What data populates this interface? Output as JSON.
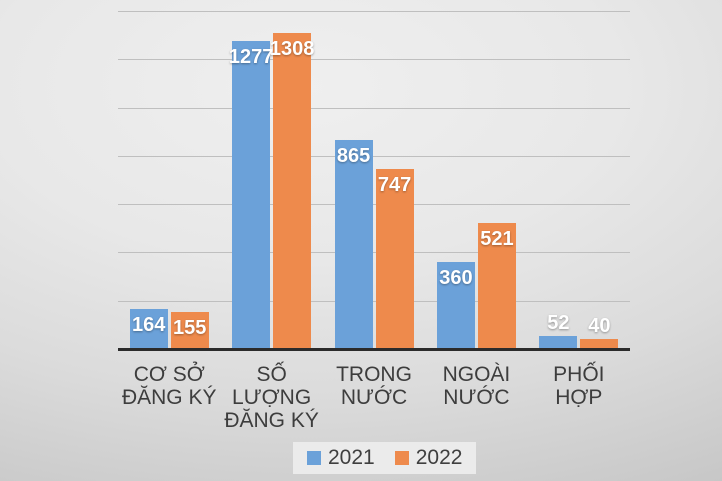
{
  "chart_data": {
    "type": "bar",
    "title": "",
    "xlabel": "",
    "ylabel": "",
    "categories": [
      "CƠ SỞ ĐĂNG KÝ",
      "SỐ LƯỢNG ĐĂNG KÝ",
      "TRONG NƯỚC",
      "NGOÀI NƯỚC",
      "PHỐI HỢP"
    ],
    "category_wrap": [
      [
        "CƠ SỞ",
        "ĐĂNG KÝ"
      ],
      [
        "SỐ",
        "LƯỢNG",
        "ĐĂNG KÝ"
      ],
      [
        "TRONG",
        "NƯỚC"
      ],
      [
        "NGOÀI",
        "NƯỚC"
      ],
      [
        "PHỐI HỢP"
      ]
    ],
    "series": [
      {
        "name": "2021",
        "color": "#6ba1d9",
        "values": [
          164,
          1277,
          865,
          360,
          52
        ]
      },
      {
        "name": "2022",
        "color": "#ee8a4c",
        "values": [
          155,
          1308,
          747,
          521,
          40
        ]
      }
    ],
    "ylim": [
      0,
      1400
    ],
    "gridline_step": 200,
    "grid": true,
    "y_axis_tick_labels_visible": false,
    "legend_position": "bottom",
    "data_labels": "white bold on bar tops; values 52 and 40 placed above bars"
  },
  "colors": {
    "series_2021": "#6ba1d9",
    "series_2022": "#ee8a4c",
    "gridline": "#bfbfbf",
    "axis_line": "#2b2b2b",
    "category_label_text": "#3d3d3d",
    "value_label_text": "#ffffff",
    "legend_text": "#3f3f3f",
    "legend_background": "#ebebeb",
    "background": "#e3e3e3"
  }
}
